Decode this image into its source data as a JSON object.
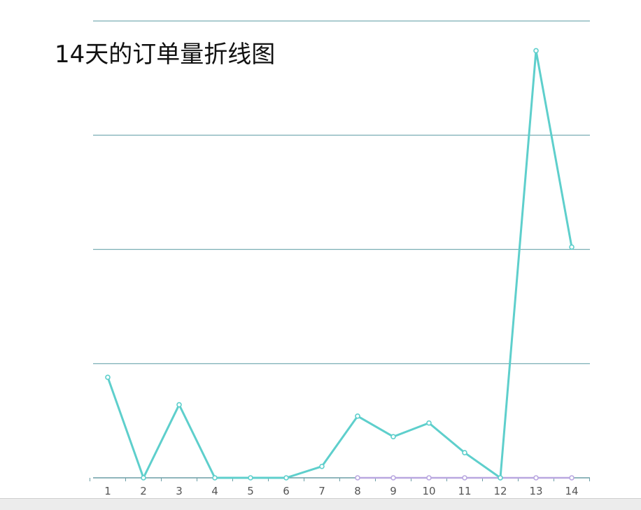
{
  "chart_data": {
    "type": "line",
    "title": "14天的订单量折线图",
    "x": [
      "1",
      "2",
      "3",
      "4",
      "5",
      "6",
      "7",
      "8",
      "9",
      "10",
      "11",
      "12",
      "13",
      "14"
    ],
    "series": [
      {
        "values": [
          44,
          0,
          32,
          0,
          0,
          0,
          5,
          27,
          18,
          24,
          11,
          0,
          187,
          101
        ],
        "color": "#5ecfcc"
      },
      {
        "values": [
          null,
          null,
          null,
          null,
          null,
          null,
          null,
          0,
          0,
          0,
          0,
          0,
          0,
          0
        ],
        "color": "#b9a7e0"
      }
    ],
    "ylim": [
      0,
      200
    ],
    "grid": true,
    "y_tick_labels_shown": false
  }
}
